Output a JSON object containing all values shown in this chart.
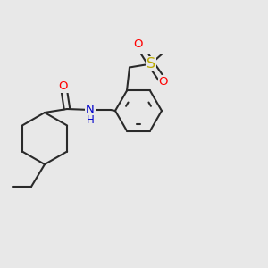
{
  "bg_color": "#e8e8e8",
  "bond_color": "#2a2a2a",
  "bond_width": 1.5,
  "atom_colors": {
    "O": "#ff0000",
    "N": "#0000cc",
    "S": "#bbaa00",
    "C": "#2a2a2a"
  },
  "font_size": 8.5,
  "fig_size": [
    3.0,
    3.0
  ],
  "dpi": 100
}
